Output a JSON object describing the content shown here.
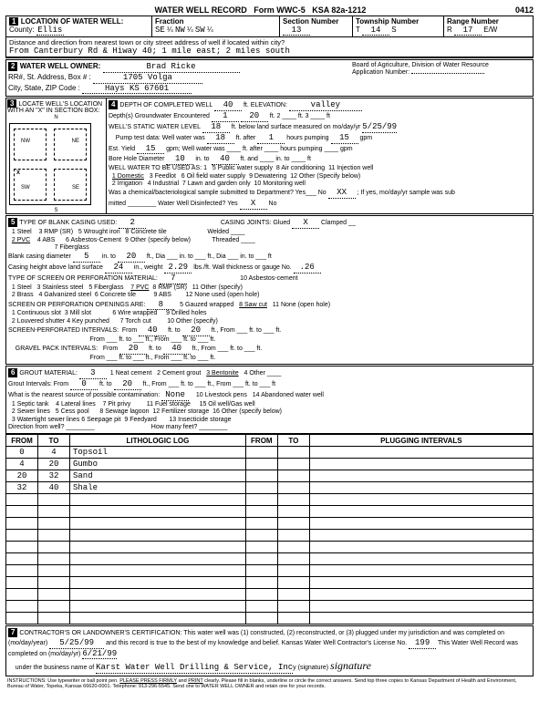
{
  "form": {
    "title": "WATER WELL RECORD",
    "num": "Form WWC-5",
    "ksa": "KSA 82a-1212",
    "id": "0412"
  },
  "loc": {
    "county": "Ellis",
    "fraction": {
      "a": "SE",
      "af": "¼",
      "b": "NW",
      "bf": "¼",
      "c": "SW",
      "cf": "¼"
    },
    "section": "13",
    "township": "14",
    "ts": "S",
    "range": "17",
    "rs": "E/W",
    "dist": "From Canterbury Rd & Hiway 40; 1 mile east; 2 miles south"
  },
  "owner": {
    "name": "Brad Ricke",
    "addr": "1705 Volga",
    "city": "Hays  KS 67601",
    "board": "Board of Agriculture, Division of Water Resource",
    "appnum": "Application Number:"
  },
  "depth": {
    "completed": "40",
    "elev": "valley",
    "gw_depths": "1",
    "gw_ft": "20",
    "static": "18",
    "meas_date": "5/25/99",
    "pump_ft": "18",
    "pump_hrs": "1",
    "pump_gpm": "15",
    "est_yield": "15",
    "bore_dia": "10",
    "bore_to": "40",
    "use_sel": "1 Domestic",
    "chem": "No",
    "chem_code": "XX",
    "disinf": "X"
  },
  "casing": {
    "type": "2",
    "type_lbl": "2 PVC",
    "dia": "5",
    "to": "20",
    "height": "24",
    "weight": "2.29",
    "gauge": ".26",
    "joints": "X"
  },
  "screen": {
    "mat": "7",
    "mat_lbl": "7 PVC",
    "open": "8",
    "open_lbl": "8 Saw cut",
    "perf_from": "40",
    "perf_to": "20",
    "gravel_from": "20",
    "gravel_to": "40"
  },
  "grout": {
    "mat": "3",
    "mat_lbl": "3 Bentonite",
    "from": "0",
    "to": "20",
    "contam": "None"
  },
  "log": {
    "cols": [
      "FROM",
      "TO",
      "LITHOLOGIC LOG",
      "FROM",
      "TO",
      "PLUGGING INTERVALS"
    ],
    "rows": [
      [
        "0",
        "4",
        "Topsoil",
        "",
        "",
        ""
      ],
      [
        "4",
        "20",
        "Gumbo",
        "",
        "",
        ""
      ],
      [
        "20",
        "32",
        "Sand",
        "",
        "",
        ""
      ],
      [
        "32",
        "40",
        "Shale",
        "",
        "",
        ""
      ],
      [
        "",
        "",
        "",
        "",
        "",
        ""
      ],
      [
        "",
        "",
        "",
        "",
        "",
        ""
      ],
      [
        "",
        "",
        "",
        "",
        "",
        ""
      ],
      [
        "",
        "",
        "",
        "",
        "",
        ""
      ],
      [
        "",
        "",
        "",
        "",
        "",
        ""
      ],
      [
        "",
        "",
        "",
        "",
        "",
        ""
      ],
      [
        "",
        "",
        "",
        "",
        "",
        ""
      ],
      [
        "",
        "",
        "",
        "",
        "",
        ""
      ],
      [
        "",
        "",
        "",
        "",
        "",
        ""
      ],
      [
        "",
        "",
        "",
        "",
        "",
        ""
      ],
      [
        "",
        "",
        "",
        "",
        "",
        ""
      ]
    ]
  },
  "cert": {
    "date": "5/25/99",
    "lic": "199",
    "comp_date": "6/21/99",
    "biz": "Karst Water Well Drilling & Service, Inc"
  }
}
